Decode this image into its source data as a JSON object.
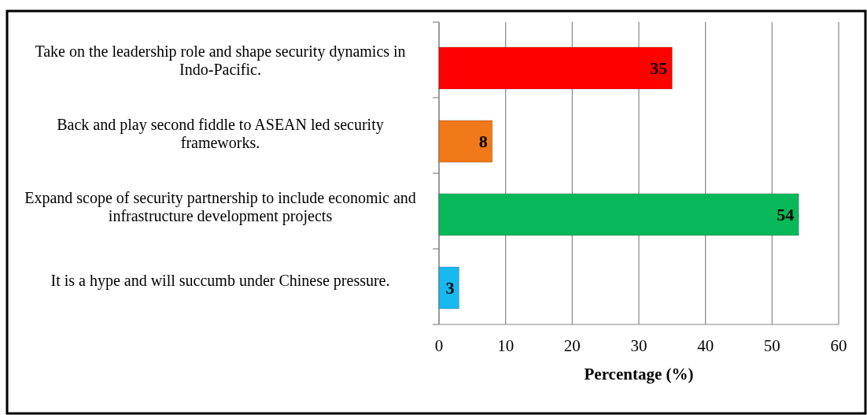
{
  "chart_data": {
    "type": "bar",
    "orientation": "horizontal",
    "xlabel": "Percentage (%)",
    "categories": [
      "Take on the leadership role and shape security dynamics in Indo-Pacific.",
      "Back and play second fiddle to ASEAN led security frameworks.",
      "Expand scope of security partnership to include economic and infrastructure development projects",
      "It is a hype and will succumb under Chinese pressure."
    ],
    "values": [
      35,
      8,
      54,
      3
    ],
    "colors": [
      "#ff0000",
      "#f07818",
      "#08b858",
      "#18b8f0"
    ],
    "xlim": [
      0,
      60
    ],
    "xticks": [
      0,
      10,
      20,
      30,
      40,
      50,
      60
    ],
    "grid": "x",
    "data_labels": true
  }
}
